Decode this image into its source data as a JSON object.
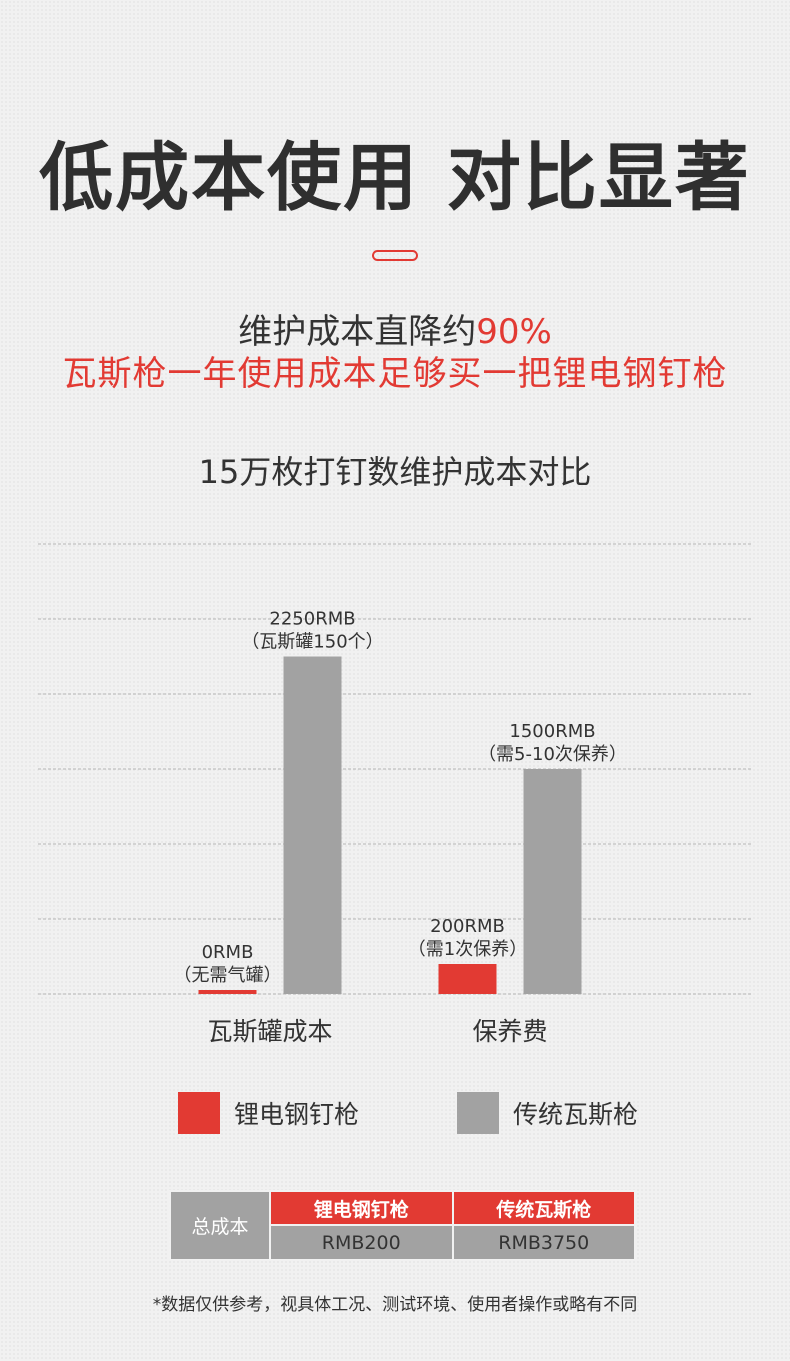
{
  "header": {
    "title": "低成本使用 对比显著",
    "subtitle_line1_prefix": "维护成本直降约",
    "subtitle_line1_accent": "90%",
    "subtitle_line2": "瓦斯枪一年使用成本足够买一把锂电钢钉枪"
  },
  "chart_data": {
    "type": "bar",
    "title": "15万枚打钉数维护成本对比",
    "categories": [
      "瓦斯罐成本",
      "保养费"
    ],
    "series": [
      {
        "name": "锂电钢钉枪",
        "color": "#e23a33",
        "values": [
          0,
          200
        ],
        "labels": [
          [
            "0RMB",
            "（无需气罐）"
          ],
          [
            "200RMB",
            "（需1次保养）"
          ]
        ]
      },
      {
        "name": "传统瓦斯枪",
        "color": "#a2a2a2",
        "values": [
          2250,
          1500
        ],
        "labels": [
          [
            "2250RMB",
            "（瓦斯罐150个）"
          ],
          [
            "1500RMB",
            "（需5-10次保养）"
          ]
        ]
      }
    ],
    "ylim": [
      0,
      3000
    ],
    "grid": true,
    "legend_position": "bottom"
  },
  "table": {
    "row_header": "总成本",
    "columns": [
      "锂电钢钉枪",
      "传统瓦斯枪"
    ],
    "values": [
      "RMB200",
      "RMB3750"
    ]
  },
  "footnote": "*数据仅供参考，视具体工况、测试环境、使用者操作或略有不同"
}
